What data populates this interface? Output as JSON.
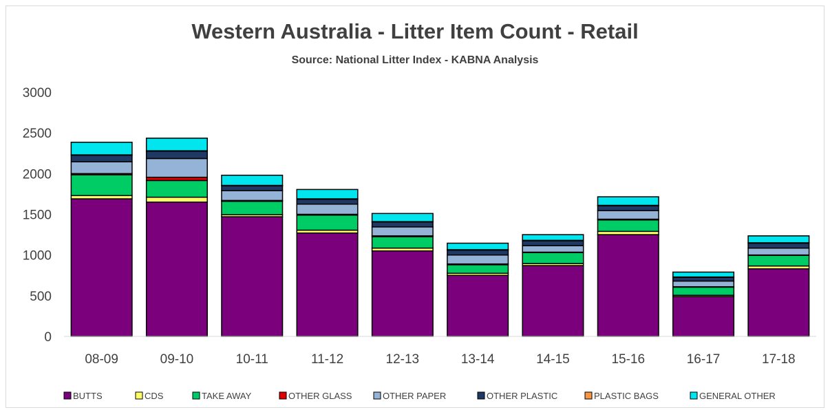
{
  "chart_data": {
    "type": "bar",
    "stacked": true,
    "title": "Western Australia - Litter Item Count - Retail",
    "subtitle": "Source: National Litter Index - KABNA Analysis",
    "xlabel": "",
    "ylabel": "",
    "ylim": [
      0,
      3000
    ],
    "yticks": [
      0,
      500,
      1000,
      1500,
      2000,
      2500,
      3000
    ],
    "grid": false,
    "legend_position": "bottom",
    "categories": [
      "08-09",
      "09-10",
      "10-11",
      "11-12",
      "12-13",
      "13-14",
      "14-15",
      "15-16",
      "16-17",
      "17-18"
    ],
    "series": [
      {
        "name": "BUTTS",
        "color": "#7b007b",
        "values": [
          1690,
          1650,
          1470,
          1270,
          1050,
          750,
          870,
          1250,
          490,
          830
        ]
      },
      {
        "name": "CDS",
        "color": "#ffff66",
        "values": [
          40,
          60,
          25,
          35,
          35,
          25,
          25,
          40,
          15,
          35
        ]
      },
      {
        "name": "TAKE AWAY",
        "color": "#00cc66",
        "values": [
          255,
          205,
          165,
          185,
          140,
          105,
          135,
          140,
          100,
          130
        ]
      },
      {
        "name": "OTHER GLASS",
        "color": "#e00000",
        "values": [
          15,
          40,
          10,
          10,
          10,
          10,
          5,
          10,
          5,
          5
        ]
      },
      {
        "name": "OTHER PAPER",
        "color": "#95b3d7",
        "values": [
          145,
          230,
          120,
          125,
          110,
          110,
          80,
          105,
          70,
          85
        ]
      },
      {
        "name": "OTHER PLASTIC",
        "color": "#1f3864",
        "values": [
          80,
          90,
          60,
          60,
          60,
          60,
          60,
          60,
          45,
          60
        ]
      },
      {
        "name": "PLASTIC BAGS",
        "color": "#f79646",
        "values": [
          5,
          5,
          5,
          5,
          5,
          5,
          5,
          5,
          5,
          5
        ]
      },
      {
        "name": "GENERAL OTHER",
        "color": "#00e5ee",
        "values": [
          155,
          155,
          125,
          115,
          100,
          80,
          70,
          105,
          60,
          85
        ]
      }
    ]
  }
}
